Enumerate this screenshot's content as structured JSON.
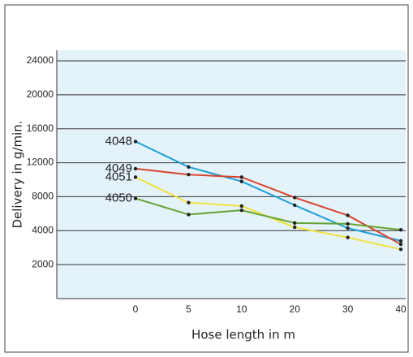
{
  "chart_data": {
    "type": "line",
    "x_label": "Hose length in m",
    "y_label": "Delivery in g/min.",
    "categories": [
      "0",
      "5",
      "10",
      "20",
      "30",
      "40"
    ],
    "series": [
      {
        "name": "4048",
        "color": "#1e9fd6",
        "values": [
          14500,
          11500,
          9800,
          7000,
          4300,
          3400
        ]
      },
      {
        "name": "4049",
        "color": "#d8452c",
        "values": [
          11300,
          10600,
          10300,
          7900,
          5800,
          3200
        ]
      },
      {
        "name": "4051",
        "color": "#f2e23c",
        "values": [
          10300,
          7300,
          6900,
          4400,
          3600,
          2900
        ]
      },
      {
        "name": "4050",
        "color": "#64a332",
        "values": [
          7800,
          5900,
          6400,
          4900,
          4800,
          4100
        ]
      }
    ],
    "ylim": [
      0,
      24000
    ],
    "yticks": [
      2000,
      4000,
      8000,
      12000,
      16000,
      20000,
      24000
    ],
    "grid": true
  }
}
